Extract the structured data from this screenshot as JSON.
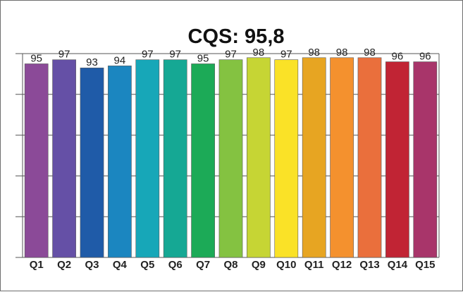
{
  "chart_data": {
    "type": "bar",
    "title": "CQS: 95,8",
    "xlabel": "",
    "ylabel": "",
    "categories": [
      "Q1",
      "Q2",
      "Q3",
      "Q4",
      "Q5",
      "Q6",
      "Q7",
      "Q8",
      "Q9",
      "Q10",
      "Q11",
      "Q12",
      "Q13",
      "Q14",
      "Q15"
    ],
    "values": [
      95,
      97,
      93,
      94,
      97,
      97,
      95,
      97,
      98,
      97,
      98,
      98,
      98,
      96,
      96
    ],
    "ylim": [
      0,
      100
    ],
    "grid": true,
    "legend": "none",
    "colors": [
      "#8b4a98",
      "#6550a6",
      "#1f5ba8",
      "#1b86c0",
      "#17a7b8",
      "#15a894",
      "#1caa57",
      "#84c241",
      "#c6d534",
      "#fae227",
      "#e7a522",
      "#f4912e",
      "#ea6f3c",
      "#c12434",
      "#a8356a"
    ]
  }
}
